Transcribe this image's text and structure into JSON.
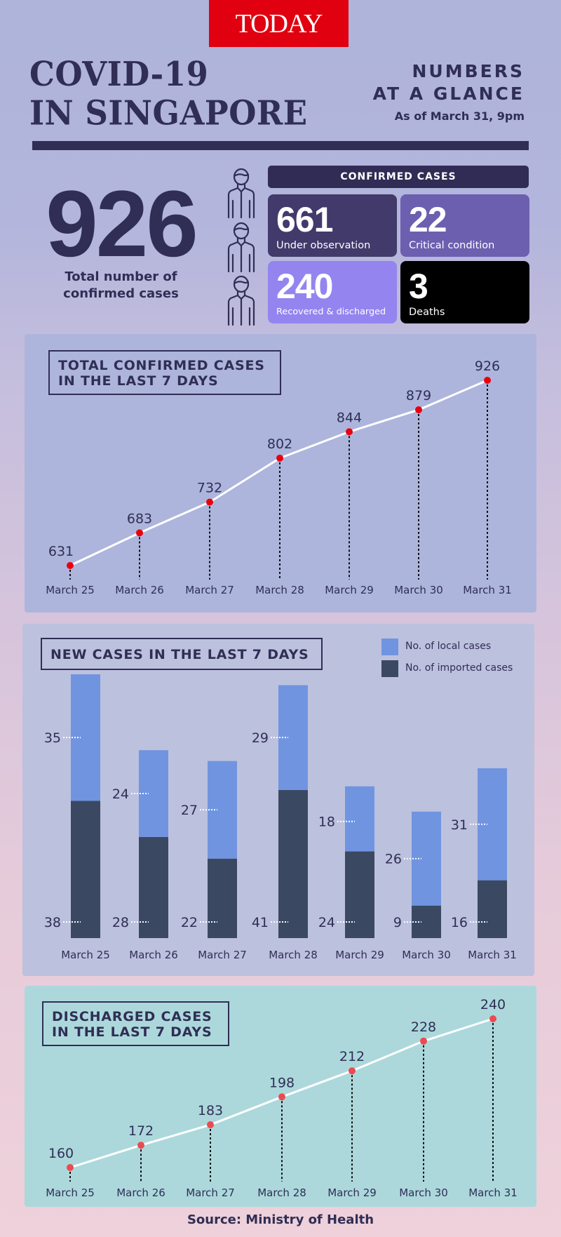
{
  "logo": "TODAY",
  "header": {
    "title_line1": "COVID-19",
    "title_line2": "IN SINGAPORE",
    "subtitle_line1": "NUMBERS",
    "subtitle_line2": "AT A GLANCE",
    "as_of": "As of March 31, 9pm"
  },
  "summary": {
    "total": "926",
    "total_label_line1": "Total number of",
    "total_label_line2": "confirmed cases",
    "confirmed_header": "CONFIRMED CASES",
    "boxes": [
      {
        "value": "661",
        "label": "Under observation",
        "color": "#413a6b"
      },
      {
        "value": "22",
        "label": "Critical condition",
        "color": "#6c5fb0"
      },
      {
        "value": "240",
        "label": "Recovered & discharged",
        "color": "#9484ef"
      },
      {
        "value": "3",
        "label": "Deaths",
        "color": "#000000"
      }
    ]
  },
  "colors": {
    "dark": "#302e55",
    "point_red": "#e8000f",
    "point_coral": "#ec4a52",
    "local": "#7094e0",
    "imported": "#3b4862"
  },
  "chart_data": [
    {
      "type": "line",
      "title_line1": "TOTAL CONFIRMED CASES",
      "title_line2": "IN THE LAST 7 DAYS",
      "categories": [
        "March 25",
        "March 26",
        "March 27",
        "March 28",
        "March 29",
        "March 30",
        "March 31"
      ],
      "values": [
        631,
        683,
        732,
        802,
        844,
        879,
        926
      ],
      "ylim": [
        631,
        926
      ],
      "grid": false,
      "xlabel": "",
      "ylabel": ""
    },
    {
      "type": "bar",
      "stacked": true,
      "title": "NEW CASES IN THE LAST 7 DAYS",
      "categories": [
        "March 25",
        "March 26",
        "March 27",
        "March 28",
        "March 29",
        "March 30",
        "March 31"
      ],
      "series": [
        {
          "name": "No. of imported cases",
          "values": [
            38,
            28,
            22,
            41,
            24,
            9,
            16
          ]
        },
        {
          "name": "No. of local cases",
          "values": [
            35,
            24,
            27,
            29,
            18,
            26,
            31
          ]
        }
      ],
      "legend": "top-right",
      "ylim": [
        0,
        73
      ],
      "grid": false
    },
    {
      "type": "line",
      "title_line1": "DISCHARGED CASES",
      "title_line2": "IN THE LAST 7 DAYS",
      "categories": [
        "March 25",
        "March 26",
        "March 27",
        "March 28",
        "March 29",
        "March 30",
        "March 31"
      ],
      "values": [
        160,
        172,
        183,
        198,
        212,
        228,
        240
      ],
      "ylim": [
        160,
        240
      ],
      "grid": false
    }
  ],
  "source": "Source: Ministry of Health"
}
